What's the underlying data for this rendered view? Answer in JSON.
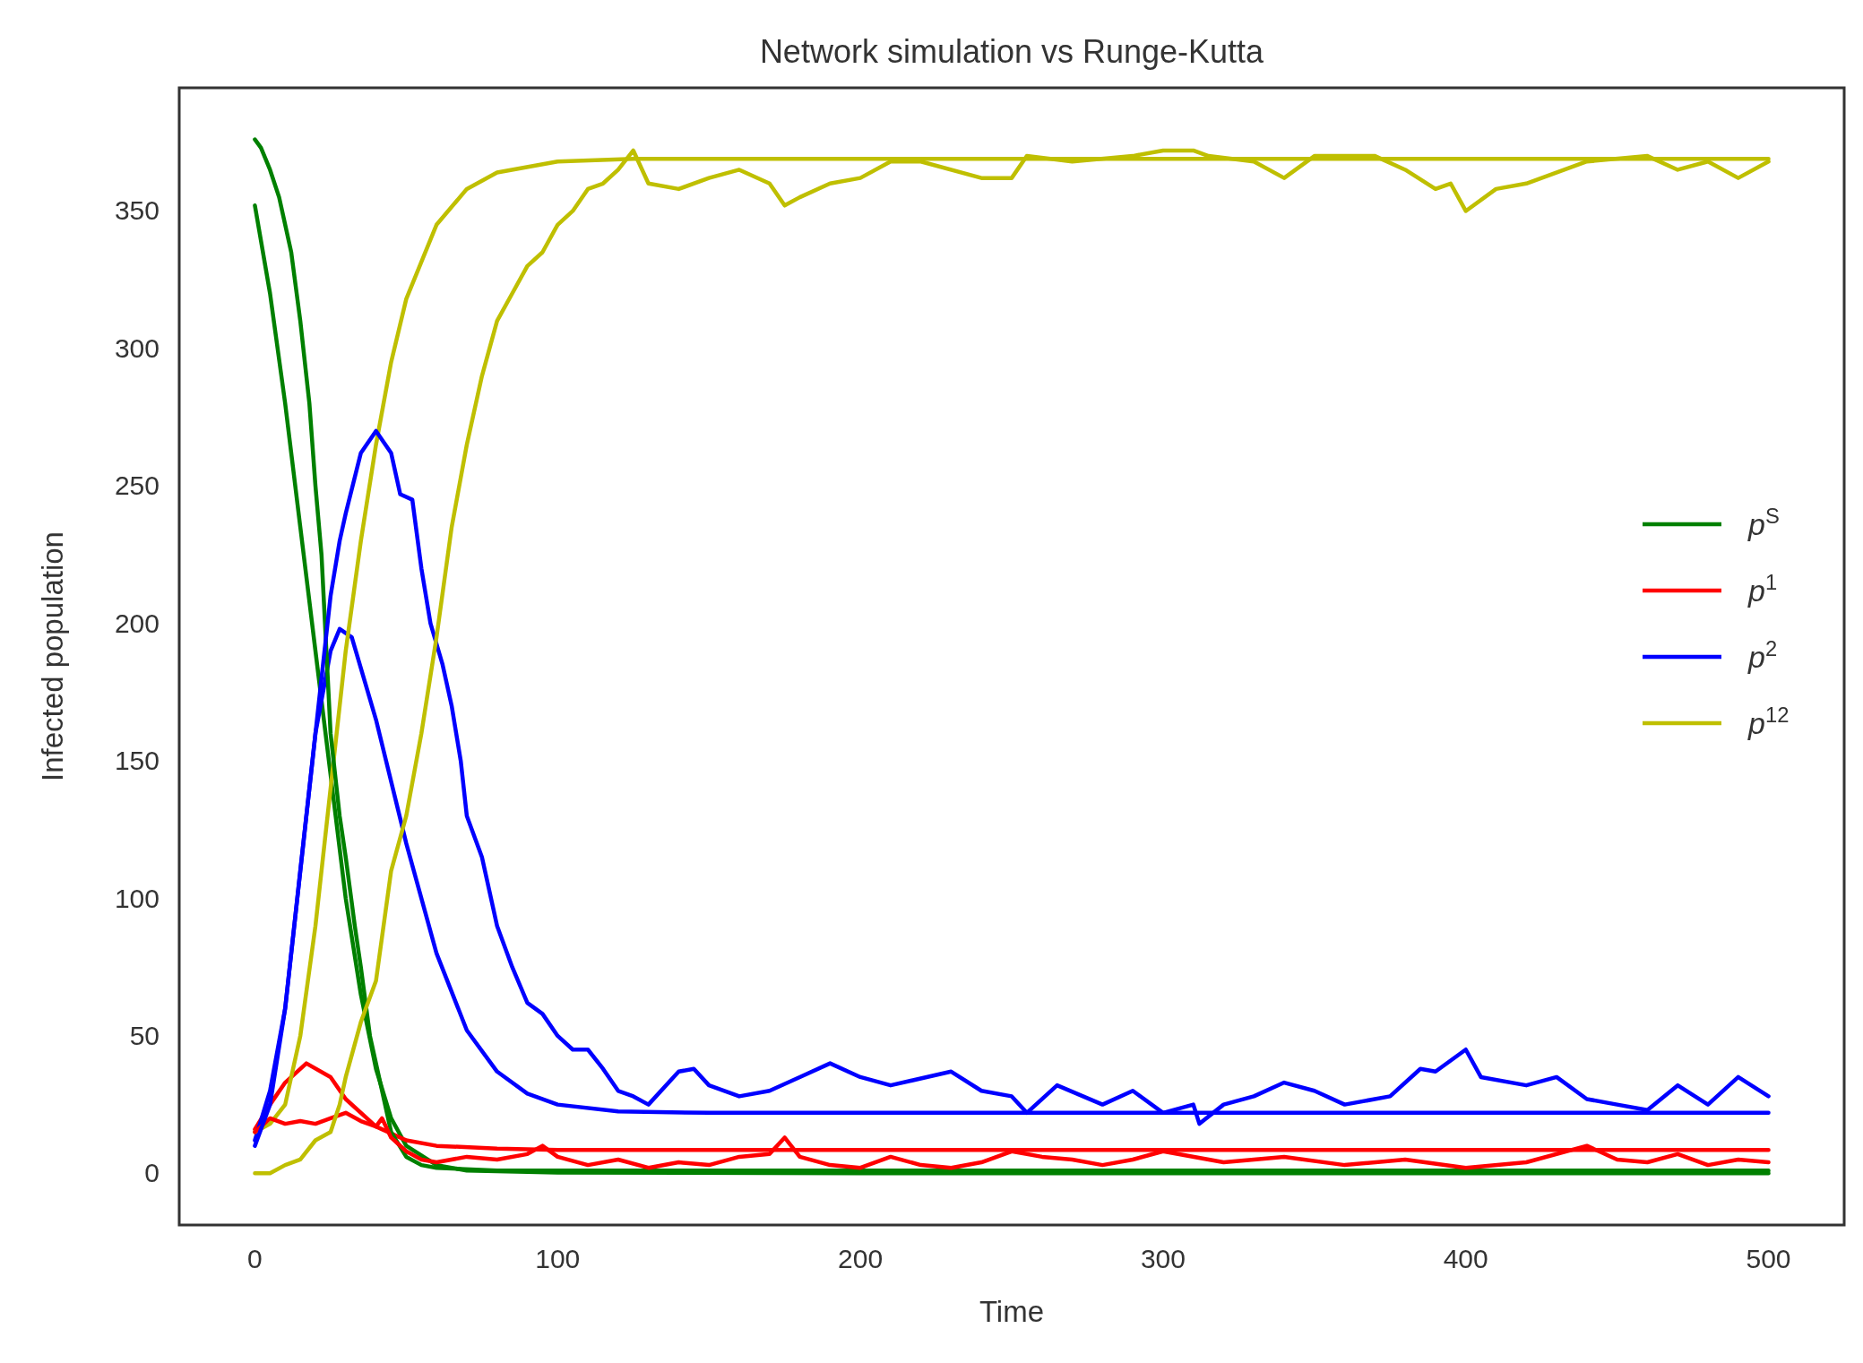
{
  "chart_data": {
    "type": "line",
    "title": "Network simulation vs Runge-Kutta",
    "xlabel": "Time",
    "ylabel": "Infected population",
    "xlim": [
      -25,
      525
    ],
    "ylim": [
      -18.8,
      394.8
    ],
    "xticks": [
      0,
      100,
      200,
      300,
      400,
      500
    ],
    "yticks": [
      0,
      50,
      100,
      150,
      200,
      250,
      300,
      350
    ],
    "grid": false,
    "legend": "right",
    "line_style": "solid",
    "series": [
      {
        "name": "p$^{S}$",
        "color": "#008000",
        "x": [
          0,
          5,
          10,
          15,
          20,
          25,
          30,
          35,
          40,
          45,
          50,
          60,
          70,
          100,
          200,
          300,
          400,
          500
        ],
        "values": [
          352,
          320,
          280,
          235,
          190,
          145,
          100,
          65,
          38,
          20,
          10,
          3,
          1,
          0.3,
          0,
          0,
          0,
          0
        ]
      },
      {
        "name": "p$^{1}$",
        "color": "#ff0000",
        "x": [
          0,
          5,
          10,
          17,
          25,
          30,
          40,
          50,
          60,
          80,
          100,
          200,
          300,
          400,
          500
        ],
        "values": [
          16,
          25,
          33,
          40,
          35,
          27,
          17,
          12,
          10,
          9,
          8.5,
          8.5,
          8.5,
          8.5,
          8.5
        ]
      },
      {
        "name": "p$^{2}$",
        "color": "#0000ff",
        "x": [
          0,
          5,
          10,
          15,
          20,
          25,
          28,
          32,
          40,
          50,
          60,
          70,
          80,
          90,
          100,
          120,
          150,
          300,
          500
        ],
        "values": [
          12,
          30,
          60,
          110,
          160,
          190,
          198,
          195,
          165,
          120,
          80,
          52,
          37,
          29,
          25,
          22.5,
          22,
          22,
          22
        ]
      },
      {
        "name": "p$^{12}$",
        "color": "#bfbf00",
        "x": [
          0,
          5,
          10,
          15,
          20,
          25,
          30,
          35,
          40,
          45,
          50,
          60,
          70,
          80,
          100,
          125,
          200,
          300,
          400,
          500
        ],
        "values": [
          15,
          18,
          25,
          50,
          90,
          140,
          190,
          230,
          265,
          295,
          318,
          345,
          358,
          364,
          368,
          369,
          369,
          369,
          369,
          369
        ]
      },
      {
        "color": "#008000",
        "x": [
          0,
          2,
          5,
          8,
          10,
          12,
          15,
          18,
          20,
          22,
          25,
          28,
          30,
          33,
          35,
          38,
          42,
          45,
          50,
          55,
          60,
          80,
          100,
          150,
          200,
          250,
          300,
          350,
          400,
          450,
          500
        ],
        "values": [
          376,
          373,
          365,
          355,
          345,
          335,
          310,
          280,
          250,
          225,
          160,
          130,
          115,
          90,
          75,
          50,
          30,
          15,
          6,
          3,
          2,
          1,
          1,
          1,
          1,
          1,
          1,
          1,
          1,
          1,
          1
        ]
      },
      {
        "color": "#ff0000",
        "x": [
          0,
          5,
          10,
          15,
          20,
          25,
          30,
          35,
          40,
          42,
          45,
          50,
          55,
          60,
          70,
          80,
          90,
          95,
          100,
          110,
          120,
          130,
          140,
          150,
          160,
          170,
          175,
          180,
          190,
          200,
          210,
          220,
          230,
          240,
          250,
          260,
          270,
          280,
          290,
          300,
          320,
          340,
          360,
          380,
          400,
          420,
          440,
          450,
          460,
          470,
          480,
          490,
          500
        ],
        "values": [
          15,
          20,
          18,
          19,
          18,
          20,
          22,
          19,
          17,
          20,
          13,
          8,
          5,
          4,
          6,
          5,
          7,
          10,
          6,
          3,
          5,
          2,
          4,
          3,
          6,
          7,
          13,
          6,
          3,
          2,
          6,
          3,
          2,
          4,
          8,
          6,
          5,
          3,
          5,
          8,
          4,
          6,
          3,
          5,
          2,
          4,
          10,
          5,
          4,
          7,
          3,
          5,
          4
        ]
      },
      {
        "color": "#0000ff",
        "x": [
          0,
          5,
          10,
          15,
          20,
          25,
          28,
          30,
          35,
          40,
          45,
          48,
          52,
          55,
          58,
          62,
          65,
          68,
          70,
          75,
          80,
          85,
          90,
          95,
          100,
          105,
          110,
          115,
          120,
          125,
          130,
          140,
          145,
          150,
          160,
          170,
          180,
          190,
          200,
          210,
          230,
          240,
          250,
          255,
          265,
          280,
          290,
          300,
          310,
          312,
          320,
          330,
          340,
          350,
          360,
          375,
          385,
          390,
          400,
          405,
          420,
          430,
          440,
          450,
          460,
          470,
          480,
          490,
          500
        ],
        "values": [
          10,
          25,
          60,
          110,
          160,
          210,
          230,
          240,
          262,
          270,
          262,
          247,
          245,
          220,
          200,
          185,
          170,
          150,
          130,
          115,
          90,
          75,
          62,
          58,
          50,
          45,
          45,
          38,
          30,
          28,
          25,
          37,
          38,
          32,
          28,
          30,
          35,
          40,
          35,
          32,
          37,
          30,
          28,
          22,
          32,
          25,
          30,
          22,
          25,
          18,
          25,
          28,
          33,
          30,
          25,
          28,
          38,
          37,
          45,
          35,
          32,
          35,
          27,
          25,
          23,
          32,
          25,
          35,
          28
        ]
      },
      {
        "color": "#bfbf00",
        "x": [
          0,
          5,
          10,
          15,
          20,
          25,
          28,
          30,
          35,
          40,
          45,
          50,
          55,
          60,
          65,
          70,
          75,
          80,
          85,
          90,
          95,
          100,
          105,
          110,
          115,
          120,
          125,
          130,
          140,
          150,
          160,
          170,
          175,
          180,
          190,
          200,
          210,
          220,
          240,
          250,
          255,
          270,
          290,
          300,
          310,
          315,
          330,
          340,
          350,
          370,
          380,
          390,
          395,
          400,
          410,
          420,
          440,
          460,
          470,
          480,
          490,
          500
        ],
        "values": [
          0,
          0,
          3,
          5,
          12,
          15,
          25,
          35,
          55,
          70,
          110,
          130,
          160,
          195,
          235,
          265,
          290,
          310,
          320,
          330,
          335,
          345,
          350,
          358,
          360,
          365,
          372,
          360,
          358,
          362,
          365,
          360,
          352,
          355,
          360,
          362,
          368,
          368,
          362,
          362,
          370,
          368,
          370,
          372,
          372,
          370,
          368,
          362,
          370,
          370,
          365,
          358,
          360,
          350,
          358,
          360,
          368,
          370,
          365,
          368,
          362,
          368
        ]
      }
    ]
  }
}
